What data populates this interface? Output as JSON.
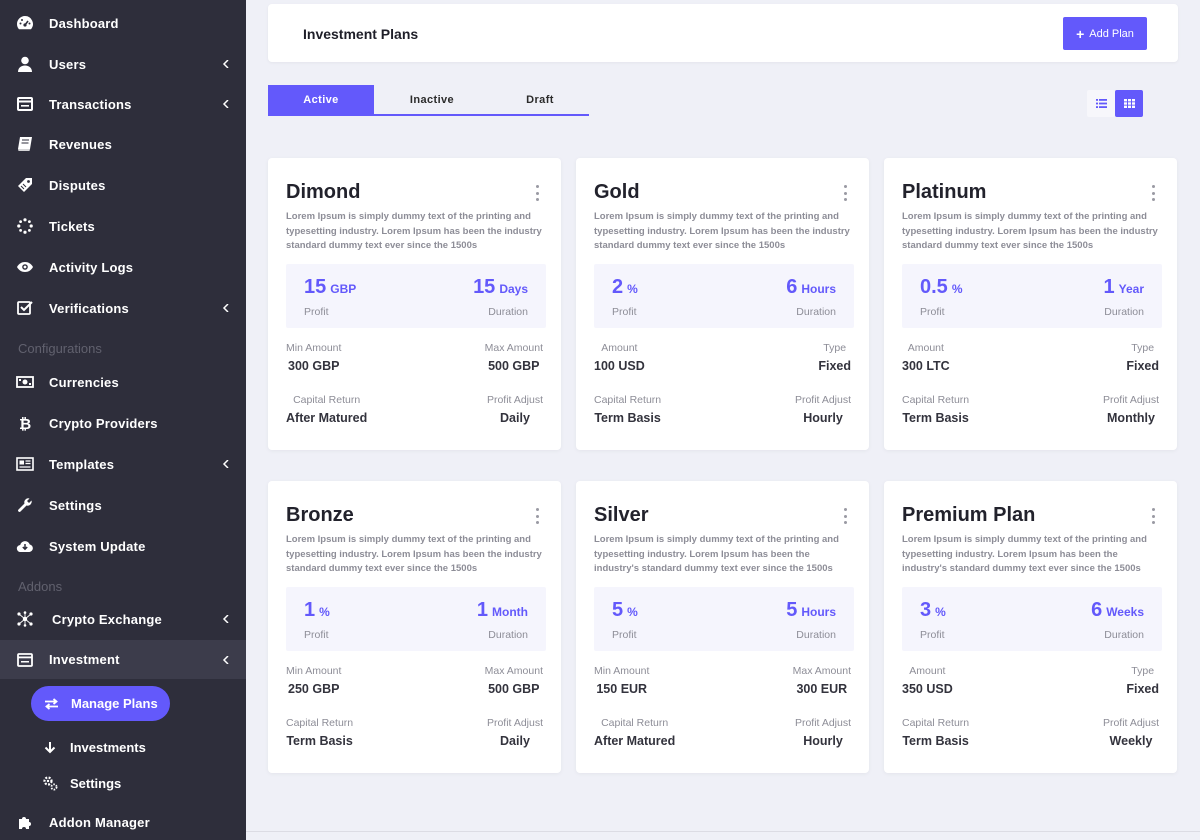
{
  "sidebar": {
    "items": [
      {
        "label": "Dashboard",
        "icon": "dashboard-icon"
      },
      {
        "label": "Users",
        "icon": "user-icon"
      },
      {
        "label": "Transactions",
        "icon": "transactions-icon"
      },
      {
        "label": "Revenues",
        "icon": "book-icon"
      },
      {
        "label": "Disputes",
        "icon": "tag-icon"
      },
      {
        "label": "Tickets",
        "icon": "spinner-icon"
      },
      {
        "label": "Activity Logs",
        "icon": "eye-icon"
      },
      {
        "label": "Verifications",
        "icon": "check-square-icon"
      }
    ],
    "section_configurations": "Configurations",
    "config_items": [
      {
        "label": "Currencies",
        "icon": "money-icon"
      },
      {
        "label": "Crypto Providers",
        "icon": "bitcoin-icon"
      },
      {
        "label": "Templates",
        "icon": "newspaper-icon"
      },
      {
        "label": "Settings",
        "icon": "wrench-icon"
      },
      {
        "label": "System Update",
        "icon": "cloud-download-icon"
      }
    ],
    "section_addons": "Addons",
    "addon_items": [
      {
        "label": "Crypto Exchange",
        "icon": "network-icon"
      },
      {
        "label": "Investment",
        "icon": "investment-icon"
      }
    ],
    "sub_items": [
      {
        "label": "Manage Plans",
        "icon": "exchange-icon"
      },
      {
        "label": "Investments",
        "icon": "arrow-down-icon"
      },
      {
        "label": "Settings",
        "icon": "cogs-icon"
      }
    ],
    "addon_manager": {
      "label": "Addon Manager",
      "icon": "puzzle-icon"
    }
  },
  "header": {
    "title": "Investment Plans",
    "add_button": "Add Plan"
  },
  "tabs": [
    {
      "label": "Active"
    },
    {
      "label": "Inactive"
    },
    {
      "label": "Draft"
    }
  ],
  "accent_color": "#6359fb",
  "plans": [
    {
      "name": "Dimond",
      "description": "Lorem Ipsum is simply dummy text of the printing and typesetting industry. Lorem Ipsum has been the industry standard dummy text ever since the 1500s",
      "left_value": "15",
      "left_unit": "GBP",
      "left_label": "Profit",
      "right_value": "15",
      "right_unit": "Days",
      "right_label": "Duration",
      "meta1_label": "Min Amount",
      "meta1_value": "300 GBP",
      "meta2_label": "Max Amount",
      "meta2_value": "500 GBP",
      "meta3_label": "Capital Return",
      "meta3_value": "After Matured",
      "meta4_label": "Profit Adjust",
      "meta4_value": "Daily"
    },
    {
      "name": "Gold",
      "description": "Lorem Ipsum is simply dummy text of the printing and typesetting industry. Lorem Ipsum has been the industry standard dummy text ever since the 1500s",
      "left_value": "2",
      "left_unit": "%",
      "left_label": "Profit",
      "right_value": "6",
      "right_unit": "Hours",
      "right_label": "Duration",
      "meta1_label": "Amount",
      "meta1_value": "100 USD",
      "meta2_label": "Type",
      "meta2_value": "Fixed",
      "meta3_label": "Capital Return",
      "meta3_value": "Term Basis",
      "meta4_label": "Profit Adjust",
      "meta4_value": "Hourly"
    },
    {
      "name": "Platinum",
      "description": "Lorem Ipsum is simply dummy text of the printing and typesetting industry. Lorem Ipsum has been the industry standard dummy text ever since the 1500s",
      "left_value": "0.5",
      "left_unit": "%",
      "left_label": "Profit",
      "right_value": "1",
      "right_unit": "Year",
      "right_label": "Duration",
      "meta1_label": "Amount",
      "meta1_value": "300 LTC",
      "meta2_label": "Type",
      "meta2_value": "Fixed",
      "meta3_label": "Capital Return",
      "meta3_value": "Term Basis",
      "meta4_label": "Profit Adjust",
      "meta4_value": "Monthly"
    },
    {
      "name": "Bronze",
      "description": "Lorem Ipsum is simply dummy text of the printing and typesetting industry. Lorem Ipsum has been the industry standard dummy text ever since the 1500s",
      "left_value": "1",
      "left_unit": "%",
      "left_label": "Profit",
      "right_value": "1",
      "right_unit": "Month",
      "right_label": "Duration",
      "meta1_label": "Min Amount",
      "meta1_value": "250 GBP",
      "meta2_label": "Max Amount",
      "meta2_value": "500 GBP",
      "meta3_label": "Capital Return",
      "meta3_value": "Term Basis",
      "meta4_label": "Profit Adjust",
      "meta4_value": "Daily"
    },
    {
      "name": "Silver",
      "description": "Lorem Ipsum is simply dummy text of the printing and typesetting industry. Lorem Ipsum has been the industry's standard dummy text ever since the 1500s",
      "left_value": "5",
      "left_unit": "%",
      "left_label": "Profit",
      "right_value": "5",
      "right_unit": "Hours",
      "right_label": "Duration",
      "meta1_label": "Min Amount",
      "meta1_value": "150 EUR",
      "meta2_label": "Max Amount",
      "meta2_value": "300 EUR",
      "meta3_label": "Capital Return",
      "meta3_value": "After Matured",
      "meta4_label": "Profit Adjust",
      "meta4_value": "Hourly"
    },
    {
      "name": "Premium Plan",
      "description": "Lorem Ipsum is simply dummy text of the printing and typesetting industry. Lorem Ipsum has been the industry's standard dummy text ever since the 1500s",
      "left_value": "3",
      "left_unit": "%",
      "left_label": "Profit",
      "right_value": "6",
      "right_unit": "Weeks",
      "right_label": "Duration",
      "meta1_label": "Amount",
      "meta1_value": "350 USD",
      "meta2_label": "Type",
      "meta2_value": "Fixed",
      "meta3_label": "Capital Return",
      "meta3_value": "Term Basis",
      "meta4_label": "Profit Adjust",
      "meta4_value": "Weekly"
    }
  ]
}
